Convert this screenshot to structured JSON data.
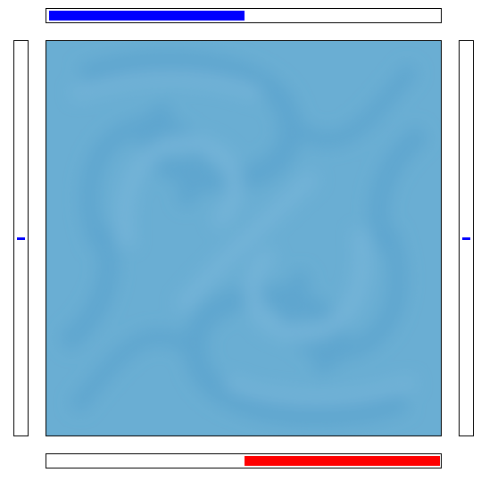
{
  "game": {
    "top_meter": {
      "value": 0.5,
      "color": "#0000ff"
    },
    "bottom_meter": {
      "value": 0.5,
      "color": "#ff0000"
    },
    "left_paddle": {
      "position": 0.5,
      "color": "#0000ff"
    },
    "right_paddle": {
      "position": 0.5,
      "color": "#0000ff"
    },
    "field": {
      "base_color": "#6aaed3",
      "swirl_dark": "#5fa6cf",
      "swirl_light": "#74b4d8"
    }
  }
}
